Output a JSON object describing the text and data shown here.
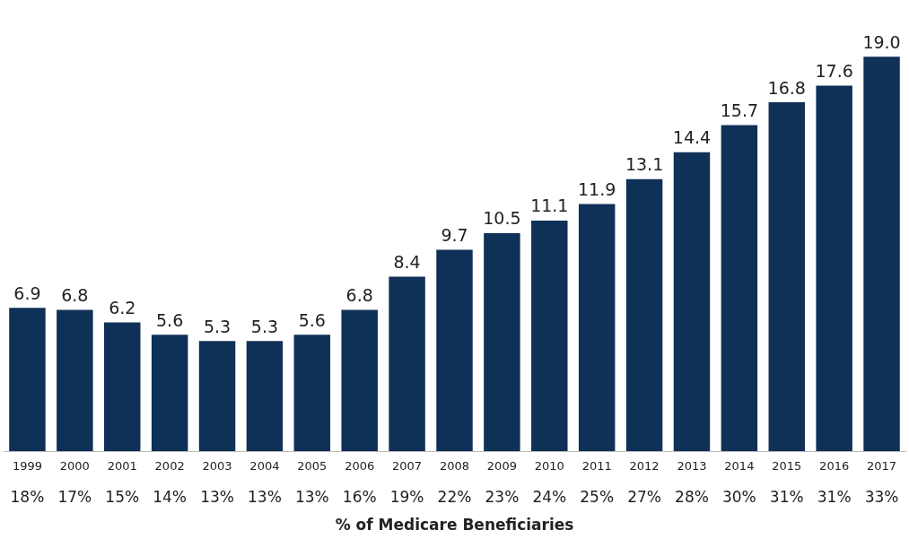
{
  "chart_data": {
    "type": "bar",
    "xlabel": "% of Medicare Beneficiaries",
    "categories": [
      "1999",
      "2000",
      "2001",
      "2002",
      "2003",
      "2004",
      "2005",
      "2006",
      "2007",
      "2008",
      "2009",
      "2010",
      "2011",
      "2012",
      "2013",
      "2014",
      "2015",
      "2016",
      "2017"
    ],
    "values": [
      6.9,
      6.8,
      6.2,
      5.6,
      5.3,
      5.3,
      5.6,
      6.8,
      8.4,
      9.7,
      10.5,
      11.1,
      11.9,
      13.1,
      14.4,
      15.7,
      16.8,
      17.6,
      19.0
    ],
    "value_labels": [
      "6.9",
      "6.8",
      "6.2",
      "5.6",
      "5.3",
      "5.3",
      "5.6",
      "6.8",
      "8.4",
      "9.7",
      "10.5",
      "11.1",
      "11.9",
      "13.1",
      "14.4",
      "15.7",
      "16.8",
      "17.6",
      "19.0"
    ],
    "color": "#0f3057",
    "grid": false,
    "legend": false,
    "tick_labels": "x",
    "annotations": [
      "18%",
      "17%",
      "15%",
      "14%",
      "13%",
      "13%",
      "13%",
      "16%",
      "19%",
      "22%",
      "23%",
      "24%",
      "25%",
      "27%",
      "28%",
      "30%",
      "31%",
      "31%",
      "33%"
    ]
  }
}
